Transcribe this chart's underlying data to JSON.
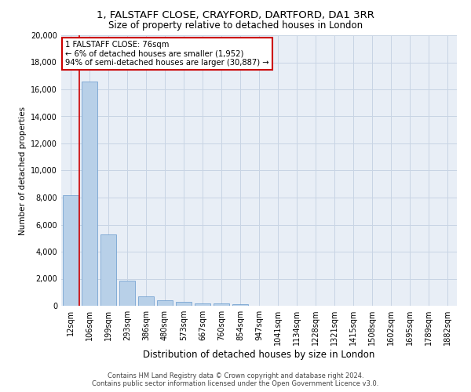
{
  "title1": "1, FALSTAFF CLOSE, CRAYFORD, DARTFORD, DA1 3RR",
  "title2": "Size of property relative to detached houses in London",
  "xlabel": "Distribution of detached houses by size in London",
  "ylabel": "Number of detached properties",
  "bar_color": "#b8d0e8",
  "bar_edge_color": "#6699cc",
  "annotation_box_color": "#ffffff",
  "annotation_border_color": "#cc0000",
  "vline_color": "#cc0000",
  "grid_color": "#c8d4e4",
  "background_color": "#e8eef6",
  "footer_line1": "Contains HM Land Registry data © Crown copyright and database right 2024.",
  "footer_line2": "Contains public sector information licensed under the Open Government Licence v3.0.",
  "annotation_line1": "1 FALSTAFF CLOSE: 76sqm",
  "annotation_line2": "← 6% of detached houses are smaller (1,952)",
  "annotation_line3": "94% of semi-detached houses are larger (30,887) →",
  "categories": [
    "12sqm",
    "106sqm",
    "199sqm",
    "293sqm",
    "386sqm",
    "480sqm",
    "573sqm",
    "667sqm",
    "760sqm",
    "854sqm",
    "947sqm",
    "1041sqm",
    "1134sqm",
    "1228sqm",
    "1321sqm",
    "1415sqm",
    "1508sqm",
    "1602sqm",
    "1695sqm",
    "1789sqm",
    "1882sqm"
  ],
  "values": [
    8200,
    16600,
    5300,
    1850,
    700,
    380,
    280,
    200,
    150,
    100,
    0,
    0,
    0,
    0,
    0,
    0,
    0,
    0,
    0,
    0,
    0
  ],
  "vline_x": 0.47,
  "ylim": [
    0,
    20000
  ],
  "yticks": [
    0,
    2000,
    4000,
    6000,
    8000,
    10000,
    12000,
    14000,
    16000,
    18000,
    20000
  ]
}
